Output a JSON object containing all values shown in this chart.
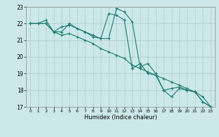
{
  "xlabel": "Humidex (Indice chaleur)",
  "xlim": [
    -0.5,
    23.5
  ],
  "ylim": [
    17,
    23
  ],
  "yticks": [
    17,
    18,
    19,
    20,
    21,
    22,
    23
  ],
  "xticks": [
    0,
    1,
    2,
    3,
    4,
    5,
    6,
    7,
    8,
    9,
    10,
    11,
    12,
    13,
    14,
    15,
    16,
    17,
    18,
    19,
    20,
    21,
    22,
    23
  ],
  "bg_color": "#cce8e8",
  "grid_color": "#aacccc",
  "line_color": "#1a7a6e",
  "series": [
    {
      "x": [
        0,
        1,
        2,
        3,
        4,
        5,
        6,
        7,
        8,
        9,
        10,
        11,
        12,
        13,
        14,
        15,
        16,
        17,
        18,
        19,
        20,
        21,
        22,
        23
      ],
      "y": [
        22.0,
        22.0,
        22.2,
        21.5,
        21.8,
        21.9,
        21.7,
        21.5,
        21.2,
        21.1,
        21.1,
        22.9,
        22.7,
        22.1,
        19.4,
        19.6,
        19.0,
        18.0,
        17.6,
        18.1,
        18.0,
        17.9,
        17.3,
        17.0
      ]
    },
    {
      "x": [
        0,
        1,
        2,
        3,
        4,
        5,
        6,
        7,
        8,
        9,
        10,
        11,
        12,
        13,
        14,
        15,
        16,
        17,
        18,
        19,
        20,
        21,
        22,
        23
      ],
      "y": [
        22.0,
        22.0,
        22.0,
        21.5,
        21.5,
        22.0,
        21.7,
        21.5,
        21.3,
        21.1,
        22.6,
        22.5,
        22.2,
        19.3,
        19.6,
        19.0,
        18.9,
        18.0,
        18.1,
        18.2,
        18.0,
        17.9,
        17.3,
        17.0
      ]
    },
    {
      "x": [
        0,
        1,
        2,
        3,
        4,
        5,
        6,
        7,
        8,
        9,
        10,
        11,
        12,
        13,
        14,
        15,
        16,
        17,
        18,
        19,
        20,
        21,
        22,
        23
      ],
      "y": [
        22.0,
        22.0,
        22.0,
        21.5,
        21.3,
        21.4,
        21.2,
        21.0,
        20.8,
        20.5,
        20.3,
        20.1,
        19.9,
        19.5,
        19.3,
        19.1,
        18.9,
        18.7,
        18.5,
        18.3,
        18.1,
        17.9,
        17.6,
        17.0
      ]
    }
  ]
}
